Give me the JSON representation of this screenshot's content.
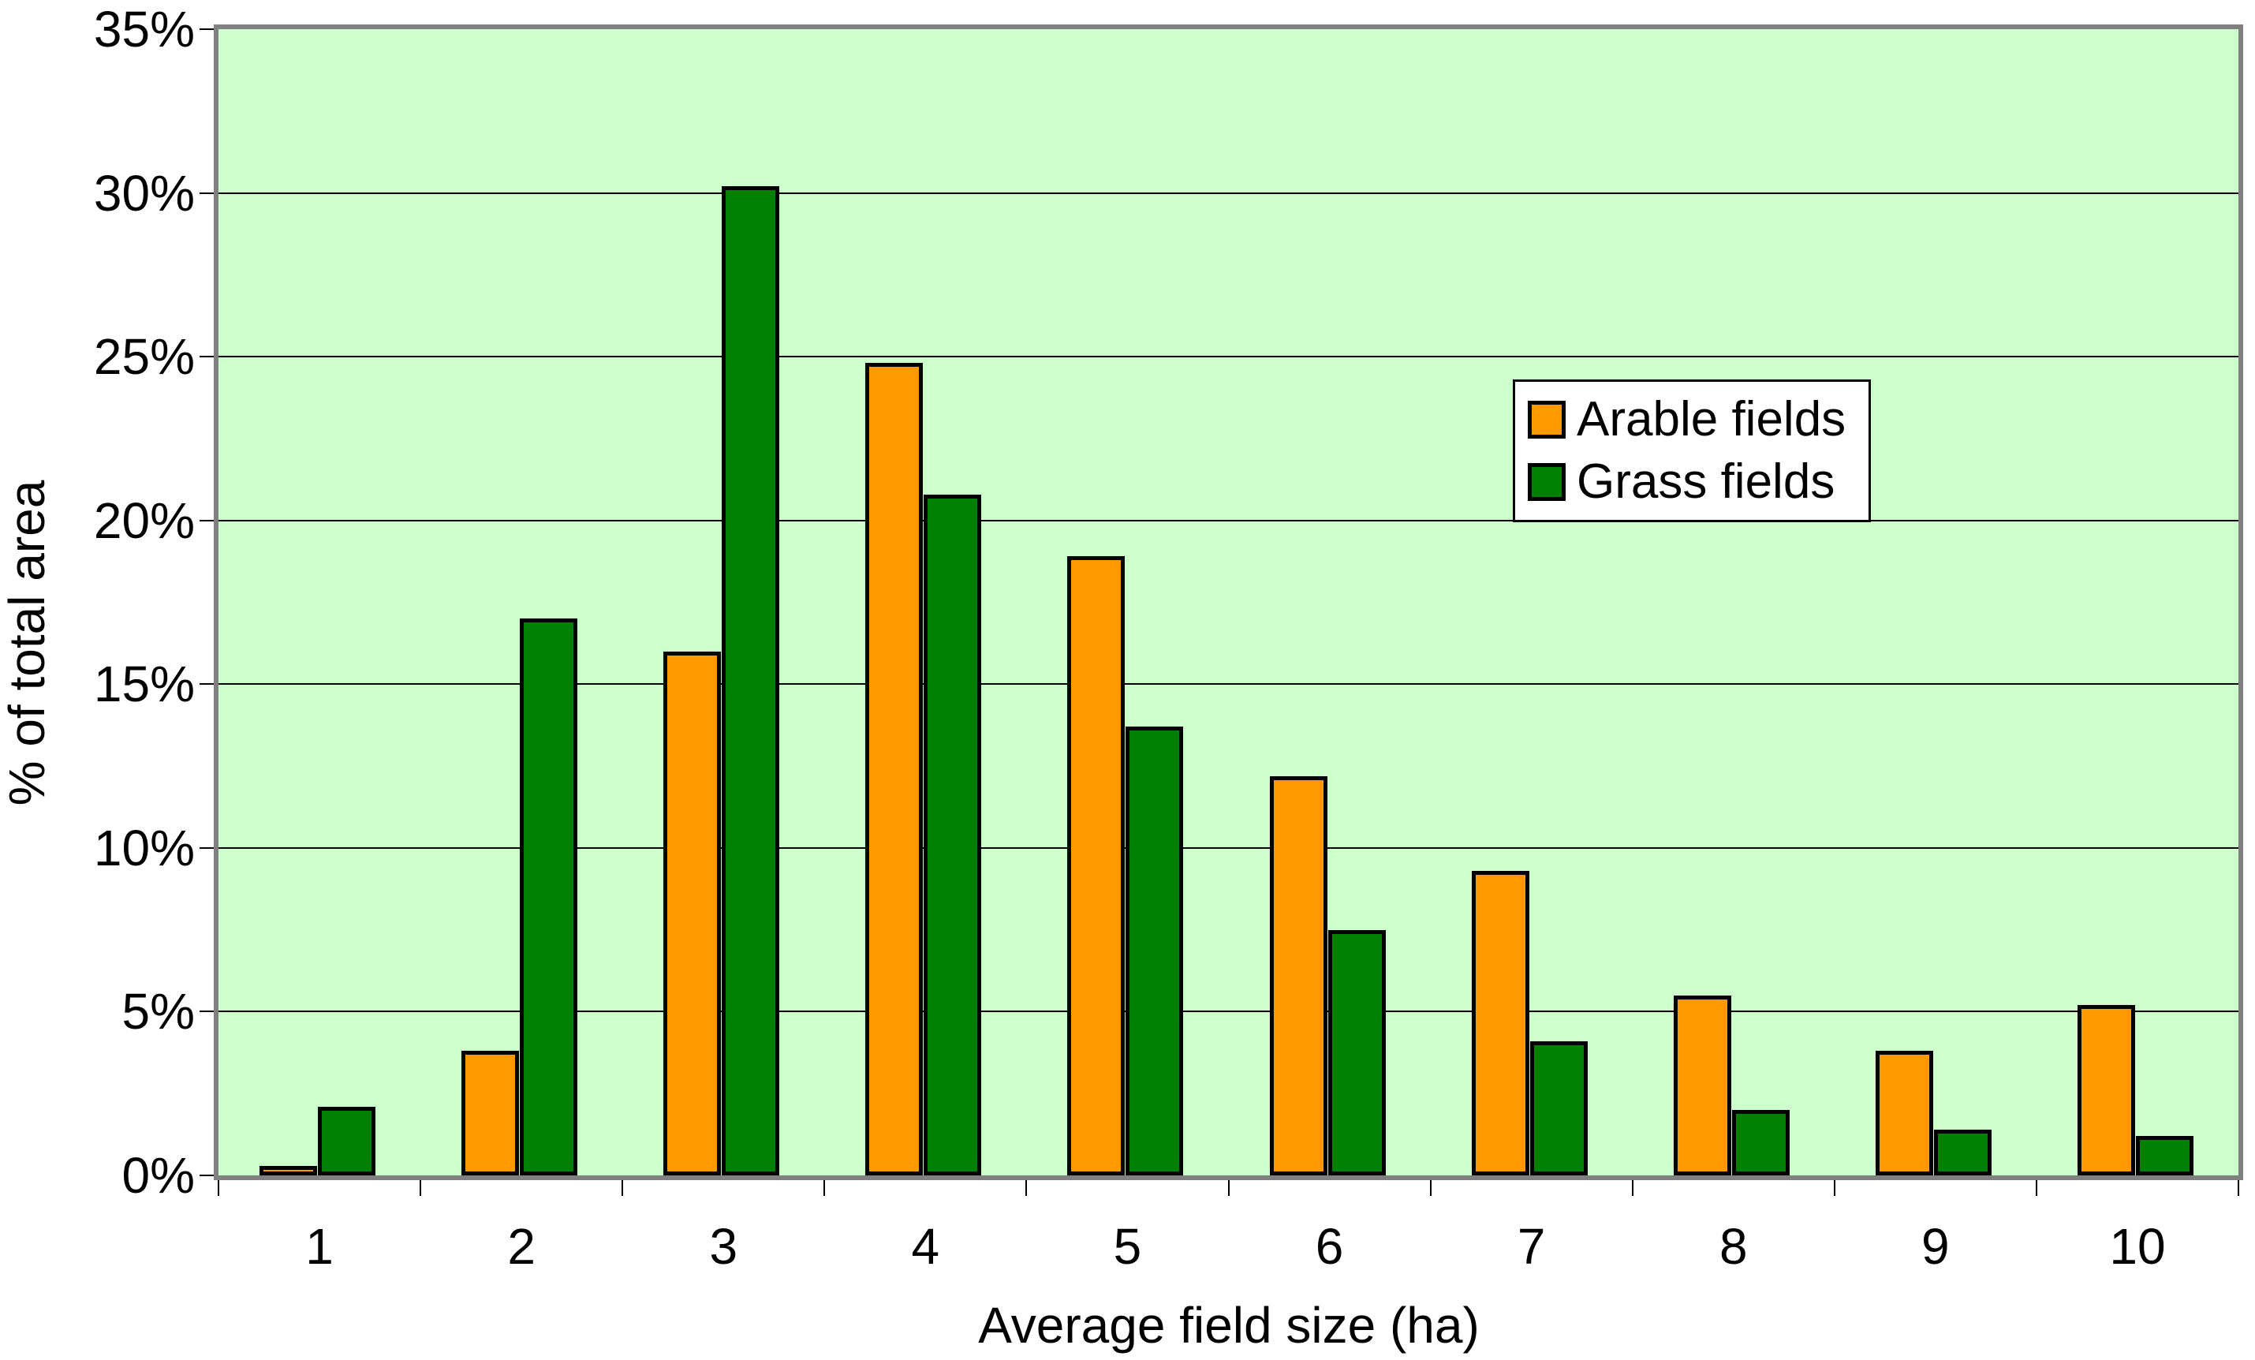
{
  "chart_data": {
    "type": "bar",
    "title": "",
    "categories": [
      "1",
      "2",
      "3",
      "4",
      "5",
      "6",
      "7",
      "8",
      "9",
      "10"
    ],
    "series": [
      {
        "name": "Arable fields",
        "color": "#FF9900",
        "values": [
          0.3,
          3.8,
          16.0,
          24.8,
          18.9,
          12.2,
          9.3,
          5.5,
          3.8,
          5.2
        ]
      },
      {
        "name": "Grass fields",
        "color": "#008000",
        "values": [
          2.1,
          17.0,
          30.2,
          20.8,
          13.7,
          7.5,
          4.1,
          2.0,
          1.4,
          1.2
        ]
      }
    ],
    "xlabel": "Average field size (ha)",
    "ylabel": "% of total area",
    "ylim": [
      0,
      35
    ],
    "ytick_step": 5,
    "ytick_labels": [
      "0%",
      "5%",
      "10%",
      "15%",
      "20%",
      "25%",
      "30%",
      "35%"
    ],
    "grid": true,
    "legend_position": "upper-right",
    "colors": {
      "plot_background": "#CCFFCC",
      "frame": "#808080",
      "gridline": "#000000",
      "bar_border": "#000000",
      "legend_background": "#FFFFFF",
      "legend_border": "#000000",
      "text": "#000000"
    }
  }
}
